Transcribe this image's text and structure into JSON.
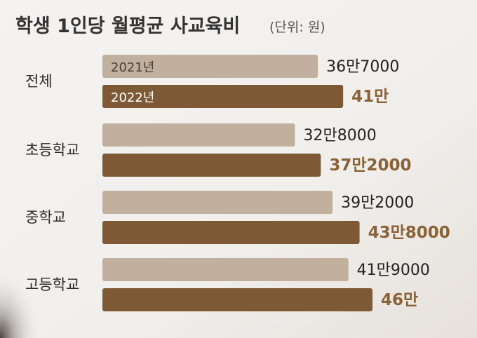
{
  "chart_data": {
    "type": "bar",
    "orientation": "horizontal",
    "title": "학생 1인당 월평균 사교육비",
    "unit": "(단위: 원)",
    "categories": [
      "전체",
      "초등학교",
      "중학교",
      "고등학교"
    ],
    "series": [
      {
        "name": "2021년",
        "color": "#c1b09e",
        "values": [
          367000,
          328000,
          392000,
          419000
        ],
        "labels": [
          "36만7000",
          "32만8000",
          "39만2000",
          "41만9000"
        ]
      },
      {
        "name": "2022년",
        "color": "#7d5a35",
        "values": [
          410000,
          372000,
          438000,
          460000
        ],
        "labels": [
          "41만",
          "37만2000",
          "43만8000",
          "46만"
        ]
      }
    ],
    "xlim": [
      0,
      460000
    ],
    "grid": false,
    "legend": "inside-first-bars"
  }
}
